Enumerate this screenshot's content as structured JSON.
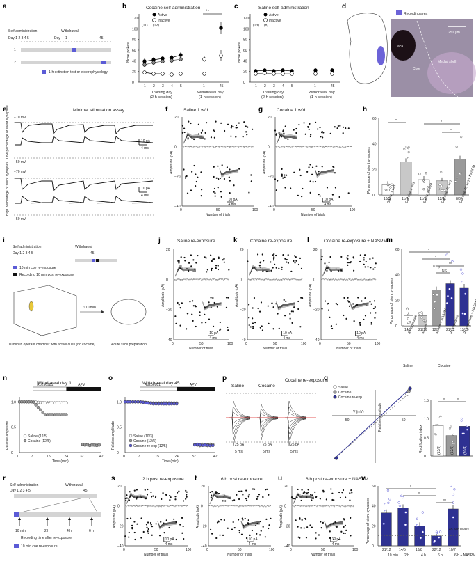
{
  "panels": {
    "a": {
      "label": "a",
      "self_admin": "Self-administration",
      "withdrawal": "Withdrawal",
      "days": "Day  1  2  3  4  5",
      "wd_days": [
        "Day",
        "1",
        "45"
      ],
      "rows": [
        "1",
        "2"
      ],
      "legend": "1-h extinction test or electrophysiology",
      "legend_color": "#5b5bd6"
    },
    "b": {
      "label": "b",
      "title": "Cocaine self-administration",
      "ylabel": "Nose pokes",
      "xlabel1": "Training day",
      "xlabel1b": "(2-h session)",
      "xlabel2": "Withdrawal day",
      "xlabel2b": "(1-h session)",
      "legend_active": "Active",
      "legend_inactive": "Inactive",
      "n_active": "(11)",
      "n_inactive": "(12)",
      "sig": "**"
    },
    "c": {
      "label": "c",
      "title": "Saline self-administration",
      "ylabel": "Nose pokes",
      "xlabel1": "Training day",
      "xlabel1b": "(2-h session)",
      "xlabel2": "Withdrawal day",
      "xlabel2b": "(1-h session)",
      "legend_active": "Active",
      "legend_inactive": "Inactive",
      "n_active": "(13)",
      "n_inactive": "(8)"
    },
    "d": {
      "label": "d",
      "legend": "Recording area",
      "scale": "250 µm",
      "aca": "aca",
      "core": "Core",
      "shell": "Medial shell"
    },
    "e": {
      "label": "e",
      "title": "Minimal stimulation assay",
      "v_neg": "−70 mV",
      "v_pos": "+50 mV",
      "low": "Low percentage of silent synapses",
      "high": "High percentage of silent synapses",
      "scale_pa": "10 pA",
      "scale_ms": "4 ms"
    },
    "f": {
      "label": "f",
      "title": "Saline 1 w/d"
    },
    "g": {
      "label": "g",
      "title": "Cocaine 1 w/d"
    },
    "h": {
      "label": "h",
      "ylabel": "Percentage of silent synapses",
      "groups": [
        "Saline 1 w/d",
        "Cocaine 1 w/d",
        "Saline 45 w/d",
        "Cocaine 45 w/d",
        "Cocaine 45 w/d + NASPM"
      ],
      "ns": [
        "10/5",
        "11/6",
        "11/5",
        "12/11",
        "8/6"
      ],
      "values": [
        8,
        26,
        12,
        11,
        28
      ],
      "sig": [
        "*",
        "*",
        "**"
      ]
    },
    "i": {
      "label": "i",
      "self_admin": "Self-administration",
      "withdrawal": "Withdrawal",
      "days": "Day  1  2  3  4  5",
      "wd_day": "45",
      "leg1": "10 min cue re-exposure",
      "leg2": "Recording 10 min post re-exposure",
      "chamber": "10 min in operant chamber with active cues (no cocaine)",
      "arrow": "~10 min",
      "slice": "Acute slice preparation"
    },
    "j": {
      "label": "j",
      "title": "Saline re-exposure"
    },
    "k": {
      "label": "k",
      "title": "Cocaine re-exposure"
    },
    "l": {
      "label": "l",
      "title": "Cocaine re-exposure + NASPM"
    },
    "m": {
      "label": "m",
      "ylabel": "Percentage of silent synapses",
      "groups": [
        "Re-exposure",
        "45 w/d",
        "45 w/d + NASPM",
        "Re-exposure",
        "Re-exposure + NASPM"
      ],
      "ns": [
        "14/5",
        "21/16",
        "12/9",
        "21/12",
        "13/10"
      ],
      "values": [
        8,
        8,
        28,
        33,
        30
      ],
      "grp_saline": "Saline",
      "grp_cocaine": "Cocaine",
      "sig": [
        "*",
        "*",
        "**",
        "NS"
      ]
    },
    "n": {
      "label": "n",
      "title": "Withdrawal day 1",
      "ro": "Ro256981",
      "apv": "APV",
      "ylabel": "Relative amplitude",
      "xlabel": "Time (min)",
      "leg_saline": "Saline (12/5)",
      "leg_cocaine": "Cocaine (12/5)",
      "sig": "**",
      "xticks": [
        "0",
        "7",
        "15",
        "24",
        "32",
        "42"
      ]
    },
    "o": {
      "label": "o",
      "title": "Withdrawal day 45",
      "ro": "Ro256981",
      "apv": "APV",
      "ylabel": "Relative amplitude",
      "xlabel": "Time (min)",
      "leg_saline": "Saline (10/3)",
      "leg_cocaine": "Cocaine (12/5)",
      "leg_reexp": "Cocaine re-exp (12/5)",
      "xticks": [
        "0",
        "7",
        "15",
        "24",
        "32",
        "42"
      ]
    },
    "p": {
      "label": "p",
      "titles": [
        "Saline",
        "Cocaine",
        "Cocaine re-exposure"
      ],
      "scale_pa": "25 pA",
      "scale_ms": "5 ms"
    },
    "q": {
      "label": "q",
      "leg_saline": "Saline",
      "leg_cocaine": "Cocaine",
      "leg_reexp": "Cocaine re-exp",
      "vlabel": "V (mV)",
      "ylabel": "Relative amplitude",
      "xticks": [
        "−50",
        "50"
      ],
      "ri_label": "Rectification index",
      "ri_ns": [
        "(13/8)",
        "(12/5)",
        "(20/4)"
      ],
      "ri_values": [
        0.82,
        0.55,
        0.8
      ],
      "sig": [
        "*",
        "*"
      ]
    },
    "r": {
      "label": "r",
      "self_admin": "Self-administration",
      "withdrawal": "Withdrawal",
      "days": "Day  1  2  3  4  5",
      "wd_day": "45",
      "times": [
        "10 min",
        "2 h",
        "4 h",
        "6 h"
      ],
      "caption": "Recording time after re-exposure",
      "legend": "10 min cue re-exposure"
    },
    "s": {
      "label": "s",
      "title": "2 h post re-exposure"
    },
    "t": {
      "label": "t",
      "title": "6 h post re-exposure"
    },
    "u": {
      "label": "u",
      "title": "6 h post re-exposure + NASPM"
    },
    "v": {
      "label": "v",
      "ylabel": "Percentage of silent synapses",
      "groups": [
        "10 min",
        "2 h",
        "4 h",
        "6 h",
        "6 h + NASPM"
      ],
      "ns": [
        "21/12",
        "14/5",
        "13/8",
        "22/12",
        "10/7"
      ],
      "values": [
        33,
        38,
        20,
        10,
        37
      ],
      "ref": "45 w/d levels",
      "sig": [
        "*",
        "*",
        "**"
      ]
    }
  },
  "common": {
    "amp_label": "Amplitude (pA)",
    "trials_label": "Number of trials",
    "scale_pa": "10 pA",
    "scale_ms": "4 ms",
    "yticks_amp": [
      "20",
      "0",
      "−20",
      "−40"
    ],
    "xticks_trials": [
      "0",
      "50",
      "100"
    ],
    "xticks_days": [
      "1",
      "2",
      "3",
      "4",
      "5",
      "1",
      "45"
    ],
    "yticks_poke": [
      "0",
      "20",
      "40",
      "60",
      "80",
      "100",
      "120"
    ],
    "yticks_pct": [
      "0",
      "20",
      "40",
      "60"
    ],
    "yticks_rel": [
      "0",
      "0.5",
      "1.0"
    ]
  },
  "colors": {
    "navy": "#2e3192",
    "gray": "#9a9a9a",
    "purple": "#6c63d8",
    "light_gray": "#c8c8c8"
  }
}
